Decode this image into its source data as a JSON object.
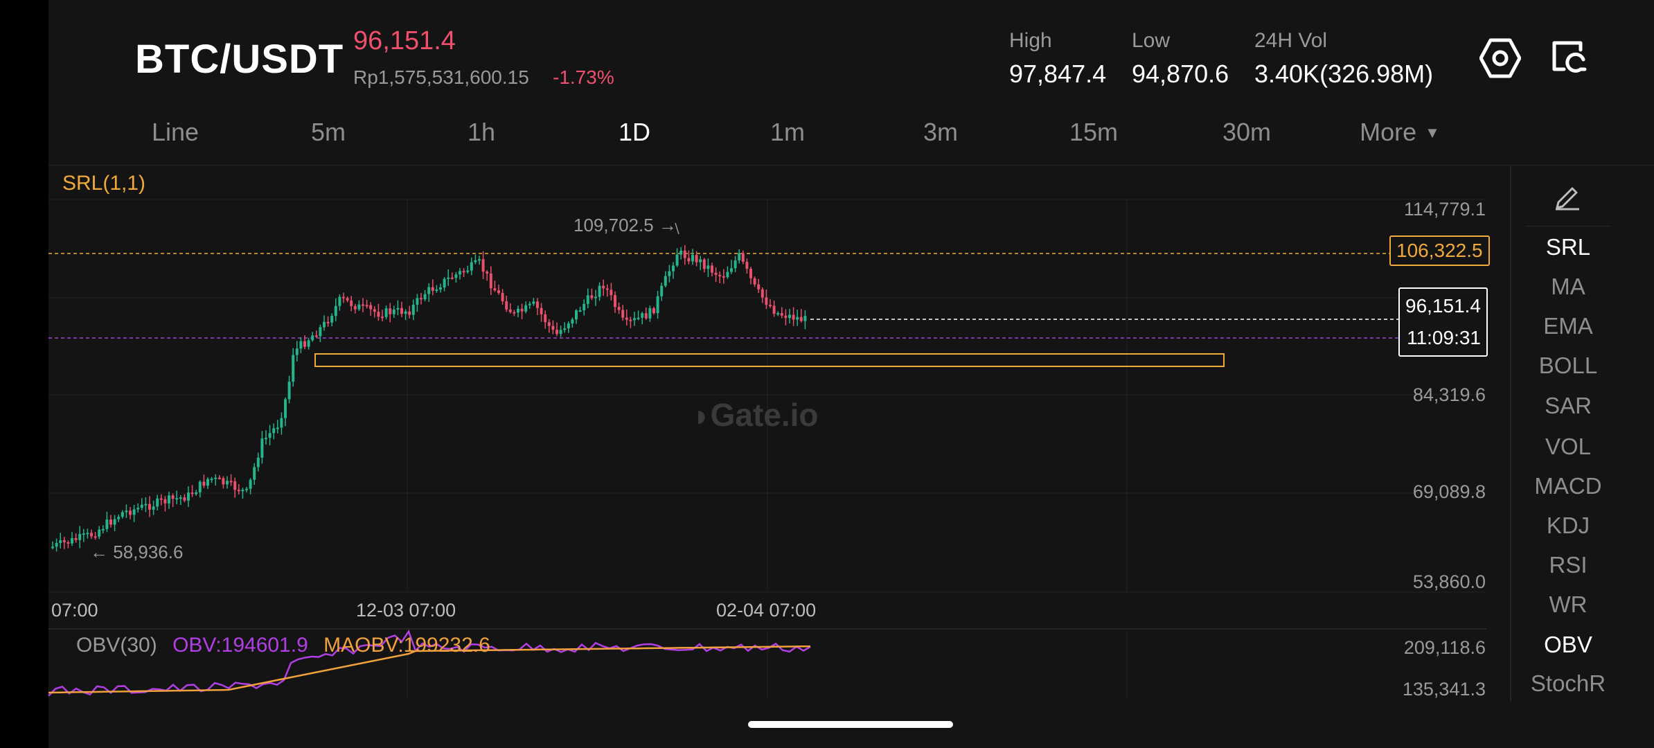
{
  "header": {
    "pair": "BTC/USDT",
    "last_price": "96,151.4",
    "fiat_price": "Rp1,575,531,600.15",
    "change": "-1.73%",
    "high_label": "High",
    "high_value": "97,847.4",
    "low_label": "Low",
    "low_value": "94,870.6",
    "vol_label": "24H Vol",
    "vol_value": "3.40K(326.98M)"
  },
  "tabs": [
    {
      "label": "Line",
      "active": false
    },
    {
      "label": "5m",
      "active": false
    },
    {
      "label": "1h",
      "active": false
    },
    {
      "label": "1D",
      "active": true
    },
    {
      "label": "1m",
      "active": false
    },
    {
      "label": "3m",
      "active": false
    },
    {
      "label": "15m",
      "active": false
    },
    {
      "label": "30m",
      "active": false
    },
    {
      "label": "More",
      "active": false
    }
  ],
  "indicator_title": "SRL(1,1)",
  "watermark": "Gate.io",
  "price_axis": [
    "114,779.1",
    "84,319.6",
    "69,089.8",
    "53,860.0"
  ],
  "price_tags": {
    "srl_level": "106,322.5",
    "current_price": "96,151.4",
    "countdown": "11:09:31"
  },
  "annotations": {
    "high_marker": "109,702.5",
    "low_marker": "58,936.6"
  },
  "time_axis": [
    "07:00",
    "12-03 07:00",
    "02-04 07:00"
  ],
  "obv": {
    "title": "OBV(30)",
    "obv_label": "OBV:194601.9",
    "maobv_label": "MAOBV:199232.6",
    "axis_top": "209,118.6",
    "axis_bottom": "135,341.3"
  },
  "indicator_panel": [
    "SRL",
    "MA",
    "EMA",
    "BOLL",
    "SAR",
    "VOL",
    "MACD",
    "KDJ",
    "RSI",
    "WR",
    "OBV",
    "StochR"
  ],
  "active_indicators": [
    "SRL",
    "OBV"
  ],
  "icons": {
    "settings": "gear-icon",
    "switch": "switch-chart-icon",
    "draw": "pencil-icon"
  },
  "colors": {
    "up": "#26b48c",
    "down": "#e8506c",
    "srl": "#f0a93b",
    "obv": "#b23fe6",
    "maobv": "#f0a03c"
  },
  "chart_data": {
    "type": "candlestick",
    "price_ylim": [
      53860.0,
      114779.1
    ],
    "annotated_high": 109702.5,
    "annotated_low": 58936.6,
    "srl_resistance": 106322.5,
    "support_zone": [
      90300,
      92200
    ],
    "current_price": 96151.4
  }
}
